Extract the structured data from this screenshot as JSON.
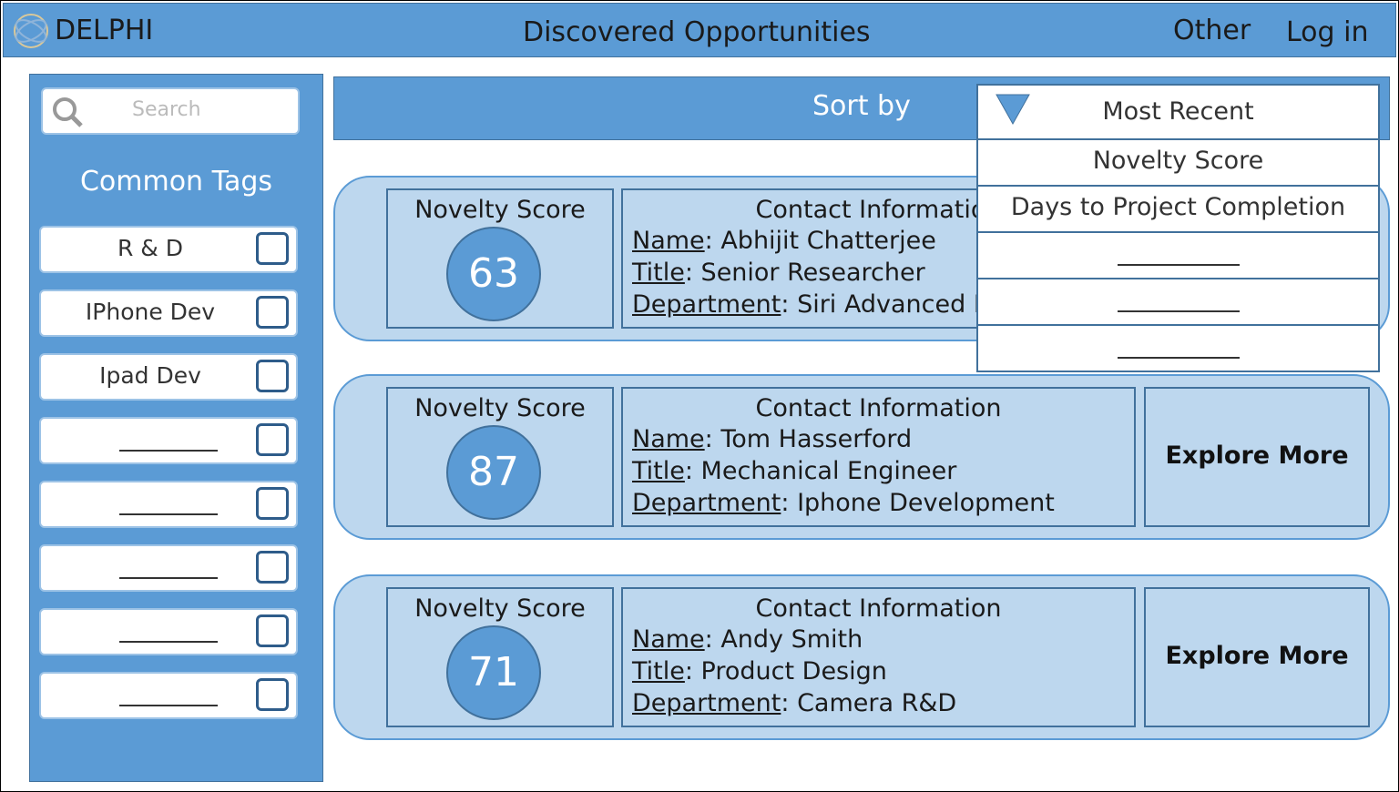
{
  "header": {
    "logo": "DELPHI",
    "title": "Discovered Opportunities",
    "nav": [
      "Other",
      "Log in"
    ]
  },
  "sidebar": {
    "search_placeholder": "Search",
    "tags_title": "Common Tags",
    "tags": [
      "R & D",
      "IPhone Dev",
      "Ipad Dev"
    ]
  },
  "sort": {
    "label": "Sort by",
    "selected": "Most Recent",
    "options": [
      "Novelty Score",
      "Days to Project Completion"
    ]
  },
  "cards": [
    {
      "score_label": "Novelty Score",
      "score": 63,
      "contact_heading": "Contact Information",
      "fields": [
        {
          "key": "Name",
          "value": ": Abhijit Chatterjee"
        },
        {
          "key": "Title",
          "value": ": Senior Researcher"
        },
        {
          "key": "Department",
          "value": ": Siri Advanced Development"
        }
      ]
    },
    {
      "score_label": "Novelty Score",
      "score": 87,
      "contact_heading": "Contact Information",
      "fields": [
        {
          "key": "Name",
          "value": ": Tom Hasserford"
        },
        {
          "key": "Title",
          "value": ": Mechanical Engineer"
        },
        {
          "key": "Department",
          "value": ": Iphone Development"
        }
      ],
      "action": "Explore More"
    },
    {
      "score_label": "Novelty Score",
      "score": 71,
      "contact_heading": "Contact Information",
      "fields": [
        {
          "key": "Name",
          "value": ": Andy Smith"
        },
        {
          "key": "Title",
          "value": ": Product Design"
        },
        {
          "key": "Department",
          "value": ": Camera R&D"
        }
      ],
      "action": "Explore More"
    }
  ]
}
